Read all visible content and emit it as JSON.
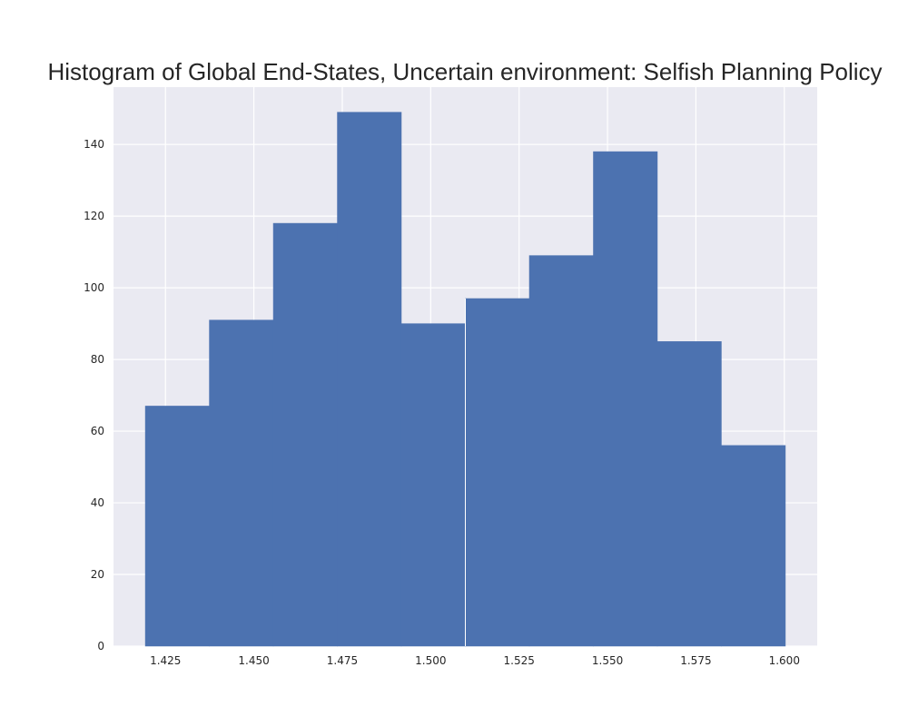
{
  "chart_data": {
    "type": "bar",
    "title": "Histogram of Global End-States, Uncertain environment: Selfish Planning Policy",
    "xlabel": "",
    "ylabel": "",
    "bin_edges": [
      1.4193,
      1.4374,
      1.4555,
      1.4736,
      1.4917,
      1.5098,
      1.5279,
      1.546,
      1.5641,
      1.5822,
      1.6003
    ],
    "values": [
      67,
      91,
      118,
      149,
      90,
      97,
      109,
      138,
      85,
      56
    ],
    "xlim": [
      1.4103,
      1.6093
    ],
    "ylim": [
      0,
      156
    ],
    "xticks": [
      1.425,
      1.45,
      1.475,
      1.5,
      1.525,
      1.55,
      1.575,
      1.6
    ],
    "xtick_labels": [
      "1.425",
      "1.450",
      "1.475",
      "1.500",
      "1.525",
      "1.550",
      "1.575",
      "1.600"
    ],
    "yticks": [
      0,
      20,
      40,
      60,
      80,
      100,
      120,
      140
    ],
    "ytick_labels": [
      "0",
      "20",
      "40",
      "60",
      "80",
      "100",
      "120",
      "140"
    ],
    "grid": true,
    "colors": {
      "bar": "#4c72b0",
      "plot_background": "#eaeaf2",
      "grid": "#ffffff",
      "text": "#262626"
    }
  }
}
